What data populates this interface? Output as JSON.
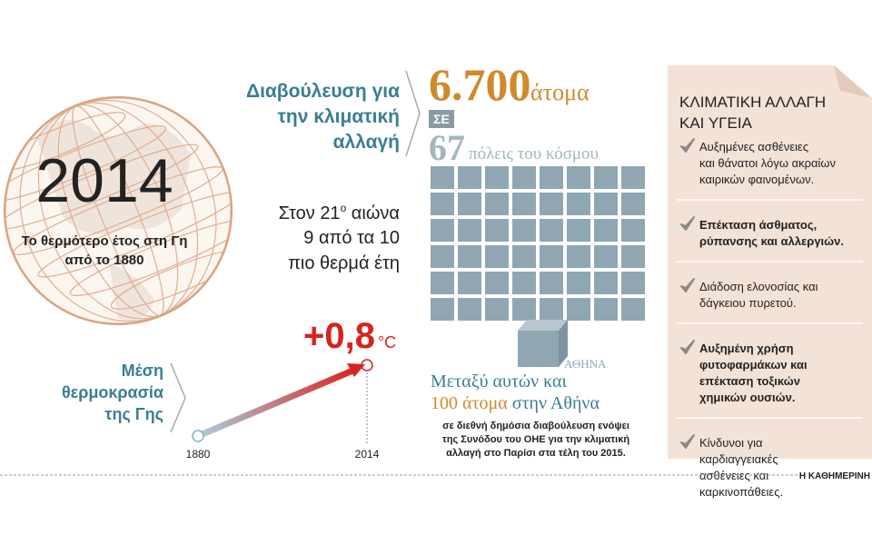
{
  "globe": {
    "year": "2014",
    "caption": [
      "Το θερμότερο έτος στη Γη",
      "από το 1880"
    ]
  },
  "consultation": {
    "heading": [
      "Διαβούλευση για",
      "την κλιματική",
      "αλλαγή"
    ],
    "people": "6.700",
    "people_unit": "άτομα",
    "in": "ΣΕ",
    "cities": "67",
    "cities_label": "πόλεις του κόσμου",
    "athens_label": "ΑΘΗΝΑ",
    "among": "Μεταξύ αυτών και",
    "athens_count": "100 άτομα",
    "athens_suffix": "στην Αθήνα",
    "note": [
      "σε διεθνή δημόσια διαβούλευση ενόψει",
      "της Συνόδου του ΟΗΕ για την κλιματική",
      "αλλαγή στο Παρίσι στα τέλη του 2015."
    ]
  },
  "warmest": {
    "line1": [
      "Στον 21",
      "ο",
      " αιώνα"
    ],
    "line2": "9 από τα 10",
    "line3": "πιο θερμά έτη"
  },
  "temperature": {
    "label": [
      "Μέση",
      "θερμοκρασία",
      "της Γης"
    ],
    "change": "+0,8",
    "unit": "°C",
    "start": "1880",
    "end": "2014"
  },
  "health": {
    "title": [
      "ΚΛΙΜΑΤΙΚΗ ΑΛΛΑΓΗ",
      "ΚΑΙ ΥΓΕΙΑ"
    ],
    "items": [
      {
        "bold": false,
        "lines": [
          "Αυξημένες ασθένειες",
          "και θάνατοι λόγω ακραίων",
          "καιρικών φαινομένων."
        ]
      },
      {
        "bold": true,
        "lines": [
          "Επέκταση άσθματος,",
          "ρύπανσης και αλλεργιών."
        ]
      },
      {
        "bold": false,
        "lines": [
          "Διάδοση ελονοσίας και",
          "δάγκειου πυρετού."
        ]
      },
      {
        "bold": true,
        "lines": [
          "Αυξημένη χρήση",
          "φυτοφαρμάκων και",
          "επέκταση τοξικών",
          "χημικών ουσιών."
        ]
      },
      {
        "bold": false,
        "lines": [
          "Κίνδυνοι για",
          "καρδιαγγειακές",
          "ασθένειες και",
          "καρκινοπάθειες."
        ]
      }
    ]
  },
  "source": "Η ΚΑΘΗΜΕΡΙΝΗ"
}
